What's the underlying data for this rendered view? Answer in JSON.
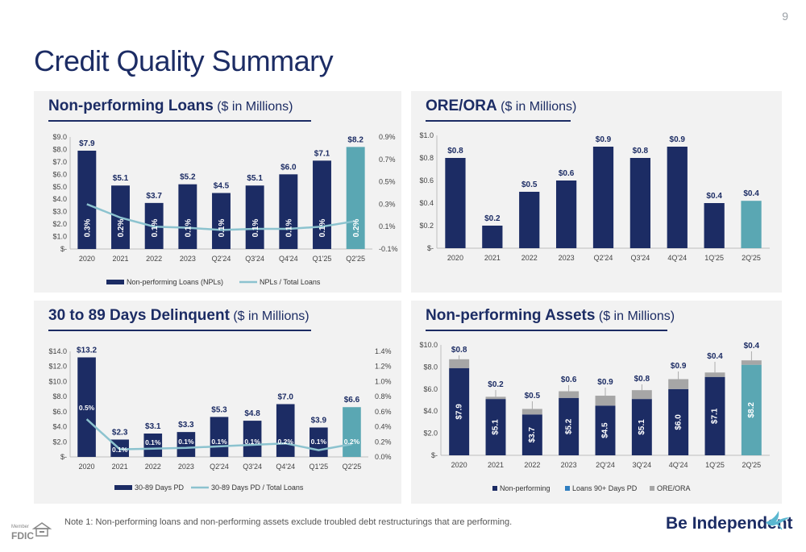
{
  "page_number": "9",
  "title": "Credit Quality Summary",
  "note": "Note 1: Non-performing loans and non-performing assets exclude troubled debt restructurings that are performing.",
  "brand": {
    "part1": "Be ",
    "part2": "Independent"
  },
  "colors": {
    "navy": "#1c2c64",
    "teal": "#5aa7b3",
    "line": "#8cc3cf",
    "gray": "#a6a6a6"
  },
  "panels": {
    "npl": {
      "title_bold": "Non-performing Loans",
      "title_sub": " ($ in Millions)"
    },
    "ore": {
      "title_bold": "ORE/ORA",
      "title_sub": " ($ in Millions)"
    },
    "del": {
      "title_bold": "30 to 89 Days Delinquent",
      "title_sub": " ($ in Millions)"
    },
    "npa": {
      "title_bold": "Non-performing Assets",
      "title_sub": " ($ in Millions)"
    }
  },
  "chart_data": [
    {
      "id": "npl",
      "type": "bar",
      "categories": [
        "2020",
        "2021",
        "2022",
        "2023",
        "Q2'24",
        "Q3'24",
        "Q4'24",
        "Q1'25",
        "Q2'25"
      ],
      "series": [
        {
          "name": "Non-performing Loans (NPLs)",
          "values": [
            7.9,
            5.1,
            3.7,
            5.2,
            4.5,
            5.1,
            6.0,
            7.1,
            8.2
          ],
          "value_labels": [
            "$7.9",
            "$5.1",
            "$3.7",
            "$5.2",
            "$4.5",
            "$5.1",
            "$6.0",
            "$7.1",
            "$8.2"
          ]
        },
        {
          "name": "NPLs / Total Loans",
          "values": [
            0.3,
            0.2,
            0.1,
            0.1,
            0.1,
            0.1,
            0.1,
            0.1,
            0.2
          ],
          "value_labels": [
            "0.3%",
            "0.2%",
            "0.1%",
            "0.1%",
            "0.1%",
            "0.1%",
            "0.1%",
            "0.1%",
            "0.2%"
          ]
        }
      ],
      "left_axis_ticks": [
        "$-",
        "$1.0",
        "$2.0",
        "$3.0",
        "$4.0",
        "$5.0",
        "$6.0",
        "$7.0",
        "$8.0",
        "$9.0"
      ],
      "right_axis_ticks": [
        "-0.1%",
        "0.1%",
        "0.3%",
        "0.5%",
        "0.7%",
        "0.9%"
      ],
      "ylim": [
        0,
        9
      ],
      "y2lim": [
        -0.1,
        0.9
      ],
      "legend": [
        "Non-performing Loans (NPLs)",
        "NPLs / Total Loans"
      ]
    },
    {
      "id": "ore",
      "type": "bar",
      "categories": [
        "2020",
        "2021",
        "2022",
        "2023",
        "Q2'24",
        "Q3'24",
        "4Q'24",
        "1Q'25",
        "2Q'25"
      ],
      "series": [
        {
          "name": "",
          "values": [
            0.8,
            0.2,
            0.5,
            0.6,
            0.9,
            0.8,
            0.9,
            0.4,
            0.42
          ],
          "value_labels": [
            "$0.8",
            "$0.2",
            "$0.5",
            "$0.6",
            "$0.9",
            "$0.8",
            "$0.9",
            "$0.4",
            "$0.4"
          ]
        }
      ],
      "left_axis_ticks": [
        "$-",
        "$0.2",
        "$0.4",
        "$0.6",
        "$0.8",
        "$1.0"
      ],
      "ylim": [
        0,
        1.0
      ]
    },
    {
      "id": "del",
      "type": "bar",
      "categories": [
        "2020",
        "2021",
        "2022",
        "2023",
        "Q2'24",
        "Q3'24",
        "Q4'24",
        "Q1'25",
        "Q2'25"
      ],
      "series": [
        {
          "name": "30-89 Days PD",
          "values": [
            13.2,
            2.3,
            3.1,
            3.3,
            5.3,
            4.8,
            7.0,
            3.9,
            6.6
          ],
          "value_labels": [
            "$13.2",
            "$2.3",
            "$3.1",
            "$3.3",
            "$5.3",
            "$4.8",
            "$7.0",
            "$3.9",
            "$6.6"
          ]
        },
        {
          "name": "30-89 Days PD / Total Loans",
          "values": [
            0.5,
            0.1,
            0.1,
            0.1,
            0.1,
            0.1,
            0.2,
            0.1,
            0.2
          ],
          "value_labels": [
            "0.5%",
            "0.1%",
            "0.1%",
            "0.1%",
            "0.1%",
            "0.1%",
            "0.2%",
            "0.1%",
            "0.2%"
          ]
        }
      ],
      "left_axis_ticks": [
        "$-",
        "$2.0",
        "$4.0",
        "$6.0",
        "$8.0",
        "$10.0",
        "$12.0",
        "$14.0"
      ],
      "right_axis_ticks": [
        "0.0%",
        "0.2%",
        "0.4%",
        "0.6%",
        "0.8%",
        "1.0%",
        "1.2%",
        "1.4%"
      ],
      "ylim": [
        0,
        14
      ],
      "y2lim": [
        0,
        1.4
      ],
      "legend": [
        "30-89 Days PD",
        "30-89 Days PD / Total Loans"
      ]
    },
    {
      "id": "npa",
      "type": "bar",
      "stacked": true,
      "categories": [
        "2020",
        "2021",
        "2022",
        "2023",
        "2Q'24",
        "3Q'24",
        "4Q'24",
        "1Q'25",
        "2Q'25"
      ],
      "series": [
        {
          "name": "Non-performing",
          "values": [
            7.9,
            5.1,
            3.7,
            5.2,
            4.5,
            5.1,
            6.0,
            7.1,
            8.2
          ],
          "value_labels": [
            "$7.9",
            "$5.1",
            "$3.7",
            "$5.2",
            "$4.5",
            "$5.1",
            "$6.0",
            "$7.1",
            "$8.2"
          ]
        },
        {
          "name": "Loans 90+ Days PD",
          "values": [
            0,
            0,
            0,
            0,
            0,
            0,
            0,
            0,
            0
          ]
        },
        {
          "name": "ORE/ORA",
          "values": [
            0.8,
            0.2,
            0.5,
            0.6,
            0.9,
            0.8,
            0.9,
            0.4,
            0.4
          ],
          "value_labels": [
            "$0.8",
            "$0.2",
            "$0.5",
            "$0.6",
            "$0.9",
            "$0.8",
            "$0.9",
            "$0.4",
            "$0.4"
          ]
        }
      ],
      "left_axis_ticks": [
        "$-",
        "$2.0",
        "$4.0",
        "$6.0",
        "$8.0",
        "$10.0"
      ],
      "ylim": [
        0,
        10
      ],
      "legend": [
        "Non-performing",
        "Loans 90+ Days PD",
        "ORE/ORA"
      ]
    }
  ]
}
